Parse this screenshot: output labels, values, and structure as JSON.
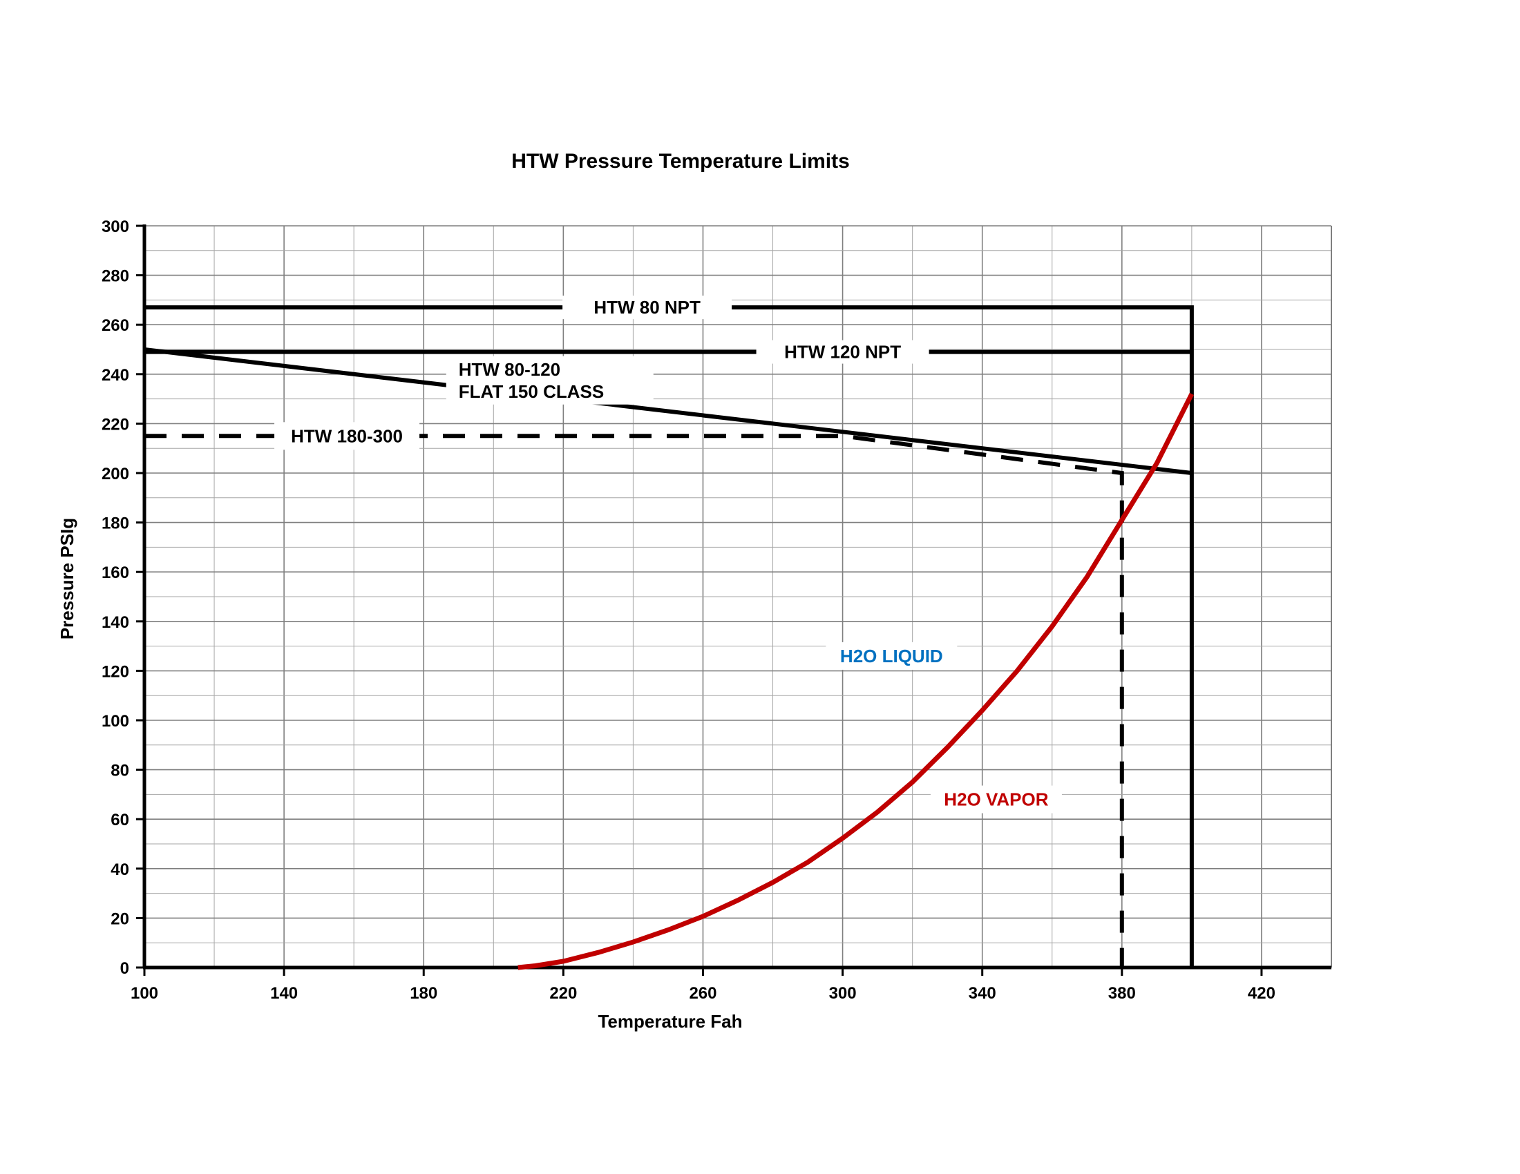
{
  "chart_data": {
    "type": "line",
    "title": "HTW Pressure Temperature Limits",
    "xlabel": "Temperature Fah",
    "ylabel": "Pressure PSIg",
    "xlim": [
      100,
      440
    ],
    "ylim": [
      0,
      300
    ],
    "x_ticks": [
      100,
      140,
      180,
      220,
      260,
      300,
      340,
      380,
      420
    ],
    "y_ticks": [
      0,
      20,
      40,
      60,
      80,
      100,
      120,
      140,
      160,
      180,
      200,
      220,
      240,
      260,
      280,
      300
    ],
    "grid": true,
    "grid_x_step": 20,
    "grid_y_step": 10,
    "series": [
      {
        "name": "HTW 80 NPT",
        "style": "solid",
        "color": "#000000",
        "points": [
          [
            100,
            267
          ],
          [
            400,
            267
          ],
          [
            400,
            0
          ]
        ]
      },
      {
        "name": "HTW 120 NPT",
        "style": "solid",
        "color": "#000000",
        "points": [
          [
            100,
            249
          ],
          [
            400,
            249
          ]
        ]
      },
      {
        "name": "HTW 80-120 FLAT 150 CLASS",
        "label_lines": [
          "HTW 80-120",
          "FLAT 150 CLASS"
        ],
        "style": "solid",
        "color": "#000000",
        "points": [
          [
            100,
            250
          ],
          [
            400,
            200
          ]
        ]
      },
      {
        "name": "HTW 180-300",
        "style": "dashed",
        "color": "#000000",
        "points": [
          [
            100,
            215
          ],
          [
            300,
            215
          ],
          [
            380,
            200
          ],
          [
            380,
            0
          ]
        ]
      },
      {
        "name": "H2O VAPOR",
        "style": "solid",
        "color": "#c00000",
        "points": [
          [
            207,
            0
          ],
          [
            212,
            0.7
          ],
          [
            220,
            2.5
          ],
          [
            230,
            6.1
          ],
          [
            240,
            10.3
          ],
          [
            250,
            15.2
          ],
          [
            260,
            20.7
          ],
          [
            270,
            27.2
          ],
          [
            280,
            34.4
          ],
          [
            290,
            42.6
          ],
          [
            300,
            52.3
          ],
          [
            310,
            62.9
          ],
          [
            320,
            75.0
          ],
          [
            330,
            89.0
          ],
          [
            340,
            104.0
          ],
          [
            350,
            120.0
          ],
          [
            360,
            138.0
          ],
          [
            370,
            158.0
          ],
          [
            380,
            181.0
          ],
          [
            390,
            204.0
          ],
          [
            400,
            232.0
          ]
        ]
      }
    ],
    "annotations": [
      {
        "text": "H2O LIQUID",
        "color": "#0070c0"
      },
      {
        "text": "H2O VAPOR",
        "color": "#c00000"
      }
    ]
  }
}
